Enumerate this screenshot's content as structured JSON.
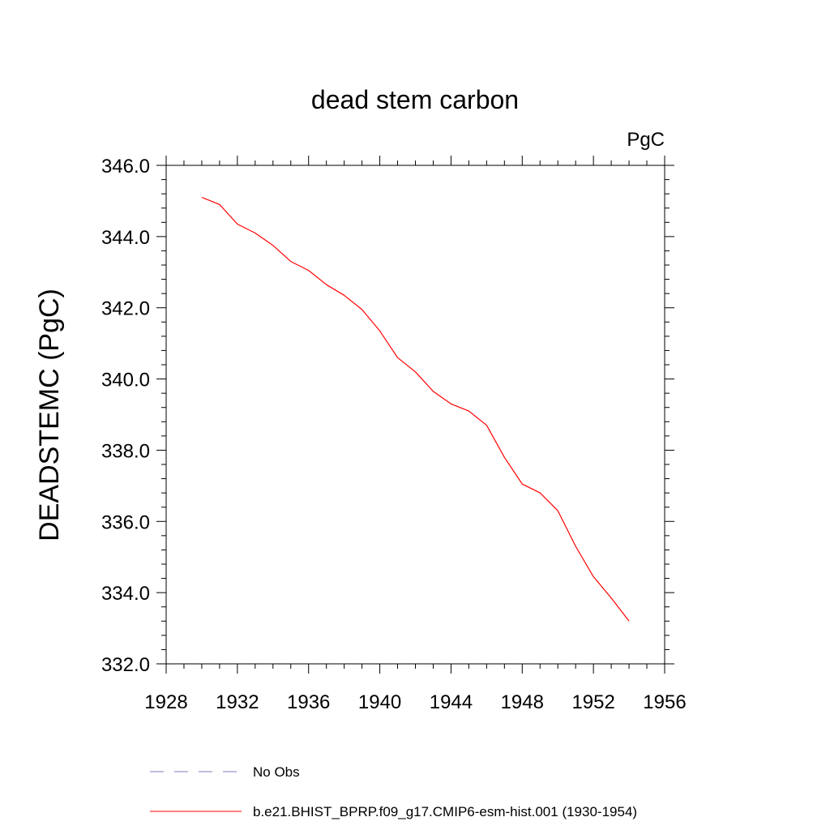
{
  "chart_data": {
    "type": "line",
    "title": "dead stem carbon",
    "units_label": "PgC",
    "ylabel": "DEADSTEMC  (PgC)",
    "xlabel": "",
    "xlim": [
      1928,
      1956
    ],
    "ylim": [
      332,
      346
    ],
    "x_ticks": [
      1928,
      1932,
      1936,
      1940,
      1944,
      1948,
      1952,
      1956
    ],
    "x_tick_labels": [
      "1928",
      "1932",
      "1936",
      "1940",
      "1944",
      "1948",
      "1952",
      "1956"
    ],
    "y_ticks": [
      332,
      334,
      336,
      338,
      340,
      342,
      344,
      346
    ],
    "y_tick_labels": [
      "332.0",
      "334.0",
      "336.0",
      "338.0",
      "340.0",
      "342.0",
      "344.0",
      "346.0"
    ],
    "grid": false,
    "series": [
      {
        "name": "b.e21.BHIST_BPRP.f09_g17.CMIP6-esm-hist.001 (1930-1954)",
        "color": "#ff0000",
        "style": "solid",
        "x": [
          1930,
          1931,
          1932,
          1933,
          1934,
          1935,
          1936,
          1937,
          1938,
          1939,
          1940,
          1941,
          1942,
          1943,
          1944,
          1945,
          1946,
          1947,
          1948,
          1949,
          1950,
          1951,
          1952,
          1953,
          1954
        ],
        "y": [
          345.1,
          344.9,
          344.35,
          344.1,
          343.75,
          343.3,
          343.05,
          342.65,
          342.35,
          341.95,
          341.35,
          340.6,
          340.2,
          339.65,
          339.3,
          339.1,
          338.7,
          337.8,
          337.05,
          336.8,
          336.3,
          335.3,
          334.45,
          333.85,
          333.2
        ]
      }
    ],
    "legend": [
      {
        "label": "No Obs",
        "color": "#7b7bbf",
        "style": "dashed"
      },
      {
        "label": "b.e21.BHIST_BPRP.f09_g17.CMIP6-esm-hist.001 (1930-1954)",
        "color": "#ff0000",
        "style": "solid"
      }
    ],
    "legend_position": "bottom"
  }
}
